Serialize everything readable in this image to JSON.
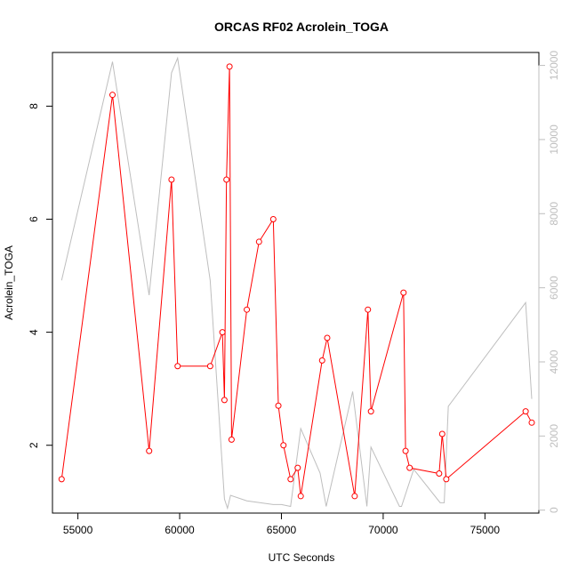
{
  "chart_data": {
    "type": "line",
    "title": "ORCAS RF02 Acrolein_TOGA",
    "xlabel": "UTC Seconds",
    "ylabel": "Acrolein_TOGA",
    "xlim": [
      53750,
      77650
    ],
    "ylim": [
      0.8,
      8.95
    ],
    "y2lim": [
      -80,
      12350
    ],
    "x_ticks": [
      55000,
      60000,
      65000,
      70000,
      75000
    ],
    "y_ticks": [
      2,
      4,
      6,
      8
    ],
    "y2_ticks": [
      0,
      2000,
      4000,
      6000,
      8000,
      10000,
      12000
    ],
    "series": [
      {
        "color": "#ff0000",
        "markers": "open-circle",
        "axis": "left",
        "points": [
          [
            54200,
            1.4
          ],
          [
            56700,
            8.2
          ],
          [
            58500,
            1.9
          ],
          [
            59600,
            6.7
          ],
          [
            59900,
            3.4
          ],
          [
            61500,
            3.4
          ],
          [
            62100,
            4.0
          ],
          [
            62200,
            2.8
          ],
          [
            62300,
            6.7
          ],
          [
            62450,
            8.7
          ],
          [
            62550,
            2.1
          ],
          [
            63300,
            4.4
          ],
          [
            63900,
            5.6
          ],
          [
            64600,
            6.0
          ],
          [
            64850,
            2.7
          ],
          [
            65100,
            2.0
          ],
          [
            65450,
            1.4
          ],
          [
            65800,
            1.6
          ],
          [
            65950,
            1.1
          ],
          [
            67000,
            3.5
          ],
          [
            67250,
            3.9
          ],
          [
            68600,
            1.1
          ],
          [
            69250,
            4.4
          ],
          [
            69400,
            2.6
          ],
          [
            71000,
            4.7
          ],
          [
            71100,
            1.9
          ],
          [
            71300,
            1.6
          ],
          [
            72750,
            1.5
          ],
          [
            72900,
            2.2
          ],
          [
            73100,
            1.4
          ],
          [
            77000,
            2.6
          ],
          [
            77300,
            2.4
          ]
        ]
      },
      {
        "color": "#bebebe",
        "markers": "none",
        "axis": "right",
        "points": [
          [
            54200,
            6200
          ],
          [
            56700,
            12100
          ],
          [
            58500,
            5800
          ],
          [
            59600,
            11800
          ],
          [
            59900,
            12200
          ],
          [
            61500,
            6200
          ],
          [
            62200,
            300
          ],
          [
            62350,
            50
          ],
          [
            62500,
            400
          ],
          [
            63300,
            250
          ],
          [
            64600,
            150
          ],
          [
            65000,
            150
          ],
          [
            65450,
            100
          ],
          [
            65950,
            2200
          ],
          [
            66900,
            1000
          ],
          [
            67200,
            100
          ],
          [
            68500,
            3200
          ],
          [
            69200,
            100
          ],
          [
            69400,
            1700
          ],
          [
            70800,
            100
          ],
          [
            70900,
            100
          ],
          [
            71500,
            1100
          ],
          [
            72800,
            200
          ],
          [
            73000,
            200
          ],
          [
            73200,
            2800
          ],
          [
            77000,
            5600
          ],
          [
            77300,
            3000
          ]
        ]
      }
    ]
  }
}
